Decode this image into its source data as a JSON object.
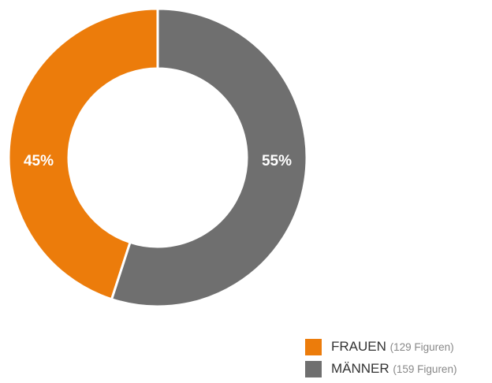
{
  "chart_data": {
    "type": "donut",
    "categories": [
      "FRAUEN",
      "MÄNNER"
    ],
    "values": [
      45,
      55
    ],
    "value_labels": [
      "45%",
      "55%"
    ],
    "legend_notes": [
      "(129 Figuren)",
      "(159 Figuren)"
    ],
    "colors": [
      "#ec7c0b",
      "#6f6f6f"
    ]
  }
}
